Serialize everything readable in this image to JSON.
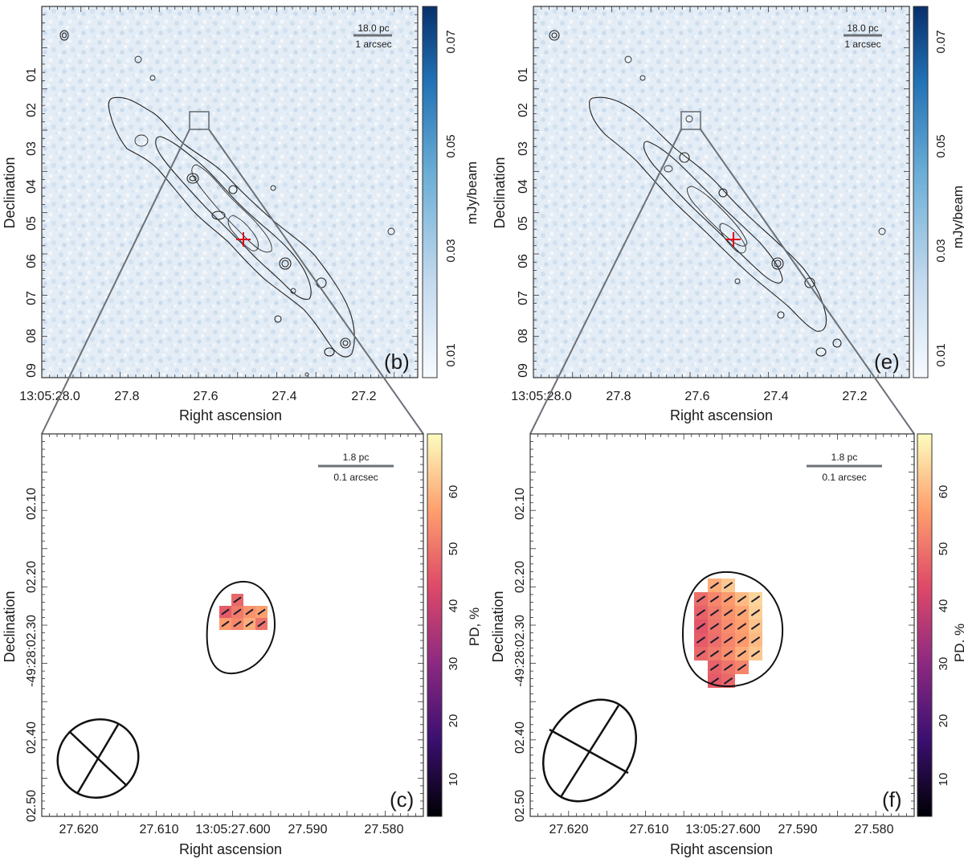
{
  "figure": {
    "panels_top": [
      {
        "id": "b",
        "label": "(b)",
        "scale_bar_pc": "18.0 pc",
        "scale_bar_arcsec": "1 arcsec",
        "xlabel": "Right ascension",
        "ylabel": "Declination",
        "x_ticks": [
          "13:05:28.0",
          "27.8",
          "27.6",
          "27.4",
          "27.2"
        ],
        "y_ticks": [
          "01",
          "02",
          "03",
          "04",
          "05",
          "06",
          "07",
          "08",
          "09"
        ],
        "colorbar_label": "mJy/beam",
        "colorbar_ticks": [
          "0.01",
          "0.03",
          "0.05",
          "0.07"
        ],
        "colorbar_colors": [
          "#f7fbff",
          "#c6dbef",
          "#6baed6",
          "#2171b5",
          "#08306b"
        ]
      },
      {
        "id": "e",
        "label": "(e)",
        "scale_bar_pc": "18.0 pc",
        "scale_bar_arcsec": "1 arcsec",
        "xlabel": "Right ascension",
        "ylabel": "Declination",
        "x_ticks": [
          "13:05:28.0",
          "27.8",
          "27.6",
          "27.4",
          "27.2"
        ],
        "y_ticks": [
          "01",
          "02",
          "03",
          "04",
          "05",
          "06",
          "07",
          "08",
          "09"
        ],
        "colorbar_label": "mJy/beam",
        "colorbar_ticks": [
          "0.01",
          "0.03",
          "0.05",
          "0.07"
        ],
        "colorbar_colors": [
          "#f7fbff",
          "#c6dbef",
          "#6baed6",
          "#2171b5",
          "#08306b"
        ]
      }
    ],
    "panels_bottom": [
      {
        "id": "c",
        "label": "(c)",
        "scale_bar_pc": "1.8 pc",
        "scale_bar_arcsec": "0.1 arcsec",
        "xlabel": "Right ascension",
        "ylabel": "Declination",
        "x_ticks": [
          "27.620",
          "27.610",
          "13:05:27.600",
          "27.590",
          "27.580"
        ],
        "y_ticks": [
          "02.10",
          "02.20",
          "-49:28:02.30",
          "02.40",
          "02.50"
        ],
        "colorbar_label": "PD, %",
        "colorbar_ticks": [
          "10",
          "20",
          "30",
          "40",
          "50",
          "60"
        ],
        "colorbar_colors": [
          "#000004",
          "#3b0f70",
          "#8c2981",
          "#de4968",
          "#fe9f6d",
          "#fcfdbf"
        ]
      },
      {
        "id": "f",
        "label": "(f)",
        "scale_bar_pc": "1.8 pc",
        "scale_bar_arcsec": "0.1 arcsec",
        "xlabel": "Right ascension",
        "ylabel": "Declination",
        "x_ticks": [
          "27.620",
          "27.610",
          "13:05:27.600",
          "27.590",
          "27.580"
        ],
        "y_ticks": [
          "02.10",
          "02.20",
          "-49:28:02.30",
          "02.40",
          "02.50"
        ],
        "colorbar_label": "PD, %",
        "colorbar_ticks": [
          "10",
          "20",
          "30",
          "40",
          "50",
          "60"
        ],
        "colorbar_colors": [
          "#000004",
          "#3b0f70",
          "#8c2981",
          "#de4968",
          "#fe9f6d",
          "#fcfdbf"
        ]
      }
    ]
  },
  "chart_data": [
    {
      "type": "heatmap",
      "panel": "(b)",
      "description_units": "total intensity map with contours",
      "xlabel": "Right ascension",
      "ylabel": "Declination",
      "x_ticks": [
        "13:05:28.0",
        "27.8",
        "27.6",
        "27.4",
        "27.2"
      ],
      "y_ticks": [
        "01",
        "02",
        "03",
        "04",
        "05",
        "06",
        "07",
        "08",
        "09"
      ],
      "colorbar": {
        "label": "mJy/beam",
        "ticks": [
          0.01,
          0.03,
          0.05,
          0.07
        ]
      }
    },
    {
      "type": "heatmap",
      "panel": "(e)",
      "xlabel": "Right ascension",
      "ylabel": "Declination",
      "x_ticks": [
        "13:05:28.0",
        "27.8",
        "27.6",
        "27.4",
        "27.2"
      ],
      "y_ticks": [
        "01",
        "02",
        "03",
        "04",
        "05",
        "06",
        "07",
        "08",
        "09"
      ],
      "colorbar": {
        "label": "mJy/beam",
        "ticks": [
          0.01,
          0.03,
          0.05,
          0.07
        ]
      }
    },
    {
      "type": "heatmap",
      "panel": "(c)",
      "xlabel": "Right ascension",
      "ylabel": "Declination",
      "x_ticks": [
        "27.620",
        "27.610",
        "13:05:27.600",
        "27.590",
        "27.580"
      ],
      "y_ticks": [
        "02.10",
        "02.20",
        "-49:28:02.30",
        "02.40",
        "02.50"
      ],
      "colorbar": {
        "label": "PD, %",
        "ticks": [
          10,
          20,
          30,
          40,
          50,
          60
        ]
      },
      "pd_cells": [
        [
          null,
          47,
          null,
          null
        ],
        [
          45,
          50,
          54,
          56
        ],
        [
          55,
          52,
          58,
          49
        ]
      ]
    },
    {
      "type": "heatmap",
      "panel": "(f)",
      "xlabel": "Right ascension",
      "ylabel": "Declination",
      "x_ticks": [
        "27.620",
        "27.610",
        "13:05:27.600",
        "27.590",
        "27.580"
      ],
      "y_ticks": [
        "02.10",
        "02.20",
        "-49:28:02.30",
        "02.40",
        "02.50"
      ],
      "colorbar": {
        "label": "PD, %",
        "ticks": [
          10,
          20,
          30,
          40,
          50,
          60
        ]
      },
      "pd_cells": [
        [
          null,
          58,
          62,
          null,
          null
        ],
        [
          48,
          52,
          55,
          60,
          64
        ],
        [
          46,
          50,
          54,
          57,
          63
        ],
        [
          44,
          49,
          53,
          56,
          61
        ],
        [
          45,
          48,
          52,
          55,
          60
        ],
        [
          47,
          50,
          53,
          58,
          62
        ],
        [
          null,
          46,
          49,
          52,
          null
        ],
        [
          null,
          45,
          47,
          null,
          null
        ]
      ]
    }
  ]
}
